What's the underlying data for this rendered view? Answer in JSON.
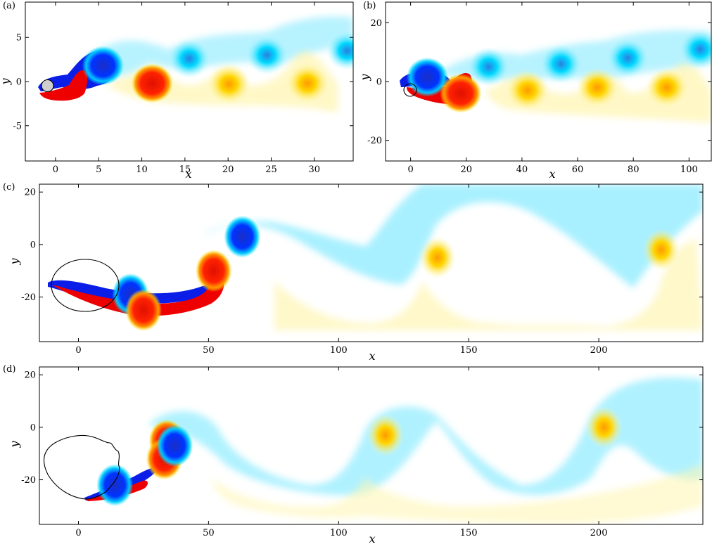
{
  "chart_data": [
    {
      "type": "heatmap",
      "panel_label": "(a)",
      "xlabel": "x",
      "ylabel": "y",
      "xlim": [
        -3.5,
        34.5
      ],
      "ylim": [
        -9,
        9
      ],
      "xticks": [
        0,
        5,
        10,
        15,
        20,
        25,
        30
      ],
      "yticks": [
        -5,
        0,
        5
      ],
      "grid": false,
      "colors": {
        "strong_negative": "#0000e6",
        "weak_negative": "#00e5ff",
        "strong_positive": "#ee0000",
        "weak_positive": "#ffee00"
      },
      "body": {
        "shape": "circle",
        "center": [
          0,
          -0.5
        ],
        "radius": 0.5,
        "fill": "#cfcfcf"
      },
      "vortices": [
        {
          "x": 5.5,
          "y": 1.8,
          "sign": -1
        },
        {
          "x": 11.2,
          "y": -0.2,
          "sign": 1
        },
        {
          "x": 15.5,
          "y": 2.6,
          "sign": -1
        },
        {
          "x": 20.1,
          "y": -0.3,
          "sign": 1
        },
        {
          "x": 24.5,
          "y": 3.0,
          "sign": -1
        },
        {
          "x": 29.2,
          "y": -0.2,
          "sign": 1
        },
        {
          "x": 33.8,
          "y": 3.5,
          "sign": -1
        }
      ]
    },
    {
      "type": "heatmap",
      "panel_label": "(b)",
      "xlabel": "x",
      "ylabel": "y",
      "xlim": [
        -9,
        108
      ],
      "ylim": [
        -27,
        27
      ],
      "xticks": [
        0,
        20,
        40,
        60,
        80,
        100
      ],
      "yticks": [
        -20,
        0,
        20
      ],
      "grid": false,
      "colors": {
        "strong_negative": "#0000e6",
        "weak_negative": "#00e5ff",
        "strong_positive": "#ee0000",
        "weak_positive": "#ffee00"
      },
      "body": {
        "shape": "circle",
        "center": [
          1,
          -3
        ],
        "radius": 2.5,
        "fill": "none"
      },
      "vortices": [
        {
          "x": 6,
          "y": 1.5,
          "sign": -1
        },
        {
          "x": 18,
          "y": -4,
          "sign": 1
        },
        {
          "x": 28,
          "y": 5,
          "sign": -1
        },
        {
          "x": 42,
          "y": -3,
          "sign": 1
        },
        {
          "x": 54,
          "y": 6,
          "sign": -1
        },
        {
          "x": 67,
          "y": -2,
          "sign": 1
        },
        {
          "x": 78,
          "y": 8,
          "sign": -1
        },
        {
          "x": 92,
          "y": -2,
          "sign": 1
        },
        {
          "x": 104,
          "y": 11,
          "sign": -1
        }
      ]
    },
    {
      "type": "heatmap",
      "panel_label": "(c)",
      "xlabel": "x",
      "ylabel": "y",
      "xlim": [
        -15,
        240
      ],
      "ylim": [
        -37,
        23
      ],
      "xticks": [
        50,
        100,
        150,
        200
      ],
      "extra_xticks": [
        0
      ],
      "yticks": [
        -20,
        0,
        20
      ],
      "grid": false,
      "colors": {
        "strong_negative": "#0000e6",
        "weak_negative": "#00e5ff",
        "strong_positive": "#ee0000",
        "weak_positive": "#ffee00"
      },
      "body": {
        "shape": "ellipse",
        "center": [
          3,
          -15
        ],
        "rx": 13,
        "ry": 10
      },
      "vortices": [
        {
          "x": 20,
          "y": -19,
          "sign": -1
        },
        {
          "x": 25,
          "y": -25,
          "sign": 1
        },
        {
          "x": 52,
          "y": -10,
          "sign": 1
        },
        {
          "x": 63,
          "y": 3,
          "sign": -1
        },
        {
          "x": 138,
          "y": -5,
          "sign": 1
        },
        {
          "x": 224,
          "y": -2,
          "sign": 1
        }
      ]
    },
    {
      "type": "heatmap",
      "panel_label": "(d)",
      "xlabel": "x",
      "ylabel": "y",
      "xlim": [
        -15,
        240
      ],
      "ylim": [
        -37,
        23
      ],
      "xticks": [
        0,
        50,
        100,
        150,
        200
      ],
      "yticks": [
        -20,
        0,
        20
      ],
      "grid": false,
      "colors": {
        "strong_negative": "#0000e6",
        "weak_negative": "#00e5ff",
        "strong_positive": "#ee0000",
        "weak_positive": "#ffee00"
      },
      "body": {
        "shape": "irregular-loop",
        "center": [
          0,
          -15
        ]
      },
      "vortices": [
        {
          "x": 14,
          "y": -22,
          "sign": -1
        },
        {
          "x": 34,
          "y": -5,
          "sign": 1
        },
        {
          "x": 33,
          "y": -12,
          "sign": 1
        },
        {
          "x": 37,
          "y": -7,
          "sign": -1
        },
        {
          "x": 118,
          "y": -3,
          "sign": 1
        },
        {
          "x": 202,
          "y": 0,
          "sign": 1
        }
      ]
    }
  ]
}
